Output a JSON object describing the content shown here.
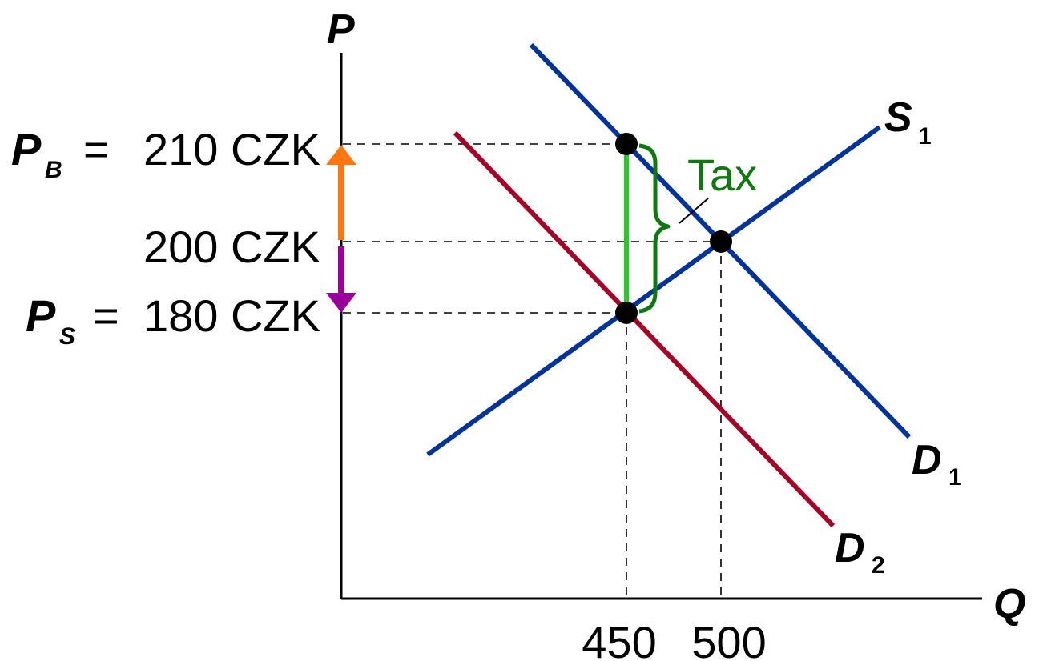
{
  "axes": {
    "y_label": "P",
    "x_label": "Q"
  },
  "price_labels": {
    "buyer_symbol": "P",
    "buyer_sub": "B",
    "buyer_eq": "=",
    "buyer_value": "210 CZK",
    "equilibrium_value": "200 CZK",
    "seller_symbol": "P",
    "seller_sub": "S",
    "seller_eq": "=",
    "seller_value": "180 CZK"
  },
  "quantity_labels": {
    "q_tax": "450",
    "q_eq": "500"
  },
  "curves": {
    "s1": {
      "main": "S",
      "sub": "1"
    },
    "d1": {
      "main": "D",
      "sub": "1"
    },
    "d2": {
      "main": "D",
      "sub": "2"
    }
  },
  "annotation": {
    "tax": "Tax"
  },
  "colors": {
    "supply_demand_blue": "#003399",
    "d2_red": "#A50026",
    "tax_bar": "#22CC22",
    "tax_brace": "#117711",
    "buyer_arrow": "#FF7711",
    "seller_arrow": "#990099",
    "black": "#000000"
  }
}
